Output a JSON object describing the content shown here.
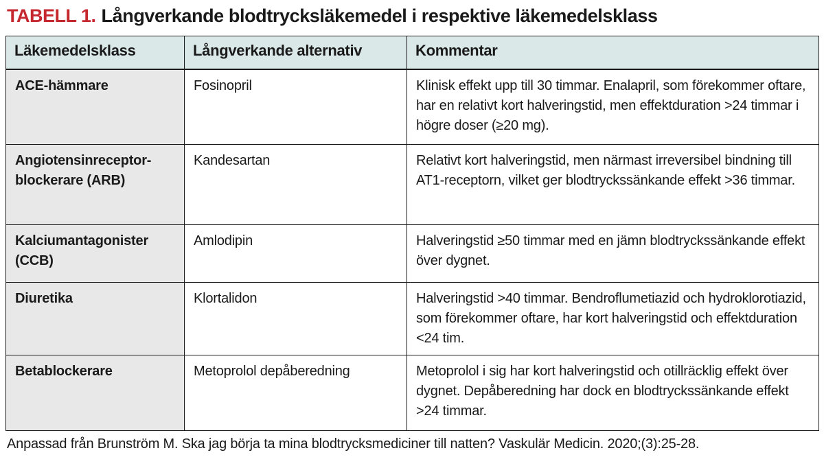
{
  "title": {
    "label": "TABELL 1.",
    "text": "Långverkande blodtrycksläkemedel i respektive läkemedelsklass"
  },
  "colors": {
    "accent_red": "#c5282f",
    "header_bg": "#dbe8e8",
    "class_column_bg": "#e8e8e8",
    "border": "#1a1a1a"
  },
  "table": {
    "headers": [
      "Läkemedelsklass",
      "Långverkande alternativ",
      "Kommentar"
    ],
    "rows": [
      {
        "drug_class": "ACE-hämmare",
        "alternative": "Fosinopril",
        "comment": "Klinisk effekt upp till 30 timmar. Enalapril, som förekommer oftare, har en relativt kort halveringstid, men effektduration >24 timmar i högre doser (≥20 mg)."
      },
      {
        "drug_class": "Angiotensinreceptor-\nblockerare (ARB)",
        "alternative": "Kandesartan",
        "comment": "Relativt kort halveringstid, men närmast irreversibel bindning till AT1-receptorn, vilket ger blodtryckssänkande effekt >36 timmar."
      },
      {
        "drug_class": "Kalciumantagonister\n(CCB)",
        "alternative": "Amlodipin",
        "comment": "Halveringstid ≥50 timmar med en jämn blodtryckssänkande effekt över dygnet."
      },
      {
        "drug_class": "Diuretika",
        "alternative": "Klortalidon",
        "comment": "Halveringstid >40 timmar. Bendroflumetiazid och hydroklorotiazid, som förekommer oftare, har kort halveringstid och effektduration <24 tim."
      },
      {
        "drug_class": "Betablockerare",
        "alternative": "Metoprolol depåberedning",
        "comment": "Metoprolol i sig har kort halveringstid och otillräcklig effekt över dygnet. Depåberedning har dock en blodtryckssänkande effekt >24 timmar."
      }
    ]
  },
  "footer": {
    "source": "Anpassad från Brunström M. Ska jag börja ta mina blodtrycksmediciner till natten? Vaskulär Medicin. 2020;(3):25-28."
  }
}
